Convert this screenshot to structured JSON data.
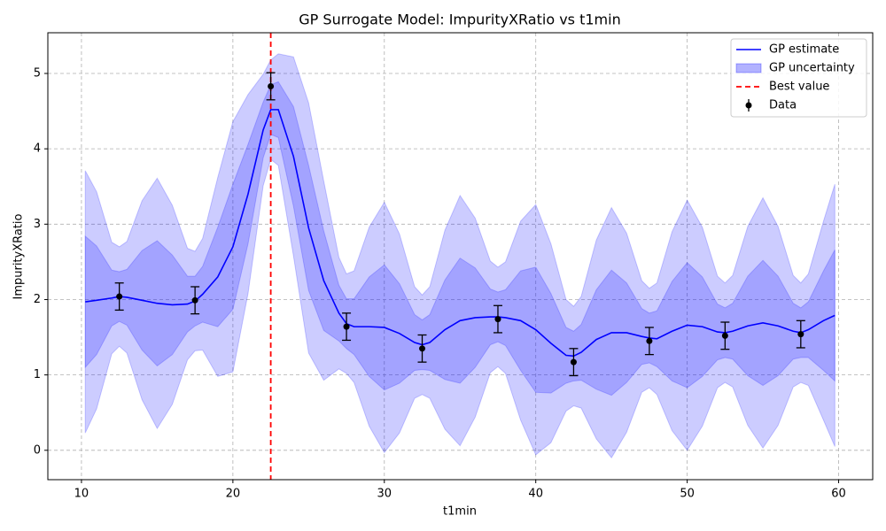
{
  "chart_data": {
    "type": "gp",
    "title": "GP Surrogate Model: ImpurityXRatio vs t1min",
    "x_label": "t1min",
    "y_label": "ImpurityXRatio",
    "xlim": [
      7.78,
      62.25
    ],
    "ylim": [
      -0.39,
      5.54
    ],
    "xticks": [
      10,
      20,
      30,
      40,
      50,
      60
    ],
    "yticks": [
      0,
      1,
      2,
      3,
      4,
      5
    ],
    "grid": true,
    "legend": "upper right",
    "x": [
      10.25,
      11,
      12,
      12.5,
      13,
      14,
      15,
      16,
      17,
      17.5,
      18,
      19,
      20,
      21,
      22,
      22.5,
      23,
      24,
      25,
      26,
      27,
      27.5,
      28,
      29,
      30,
      31,
      32,
      32.5,
      33,
      34,
      35,
      36,
      37,
      37.5,
      38,
      39,
      40,
      41,
      42,
      42.5,
      43,
      44,
      45,
      46,
      47,
      47.5,
      48,
      49,
      50,
      51,
      52,
      52.5,
      53,
      54,
      55,
      56,
      57,
      57.5,
      58,
      59,
      59.75
    ],
    "series": [
      {
        "name": "GP estimate",
        "color": "#0000ff",
        "values": [
          1.97,
          1.99,
          2.02,
          2.04,
          2.03,
          1.99,
          1.95,
          1.93,
          1.94,
          1.98,
          2.07,
          2.3,
          2.7,
          3.4,
          4.25,
          4.52,
          4.52,
          3.9,
          2.95,
          2.25,
          1.82,
          1.68,
          1.64,
          1.64,
          1.63,
          1.55,
          1.43,
          1.4,
          1.43,
          1.6,
          1.72,
          1.76,
          1.77,
          1.77,
          1.76,
          1.72,
          1.6,
          1.42,
          1.26,
          1.25,
          1.3,
          1.47,
          1.56,
          1.56,
          1.51,
          1.49,
          1.48,
          1.58,
          1.66,
          1.64,
          1.57,
          1.56,
          1.58,
          1.65,
          1.69,
          1.65,
          1.58,
          1.56,
          1.6,
          1.72,
          1.79
        ]
      }
    ],
    "band": {
      "name": "GP uncertainty",
      "color": "#0000ff",
      "opacity": 0.2,
      "outer_lower": [
        0.23,
        0.55,
        1.28,
        1.38,
        1.29,
        0.67,
        0.29,
        0.61,
        1.2,
        1.32,
        1.33,
        0.98,
        1.04,
        2.08,
        3.51,
        3.86,
        3.78,
        2.58,
        1.29,
        0.93,
        1.08,
        1.02,
        0.9,
        0.32,
        -0.03,
        0.23,
        0.69,
        0.74,
        0.69,
        0.28,
        0.06,
        0.44,
        1.03,
        1.11,
        1.02,
        0.4,
        -0.06,
        0.1,
        0.52,
        0.59,
        0.56,
        0.15,
        -0.1,
        0.24,
        0.77,
        0.83,
        0.74,
        0.26,
        0.0,
        0.32,
        0.83,
        0.9,
        0.84,
        0.33,
        0.03,
        0.33,
        0.84,
        0.9,
        0.86,
        0.4,
        0.05
      ],
      "outer_upper": [
        3.71,
        3.43,
        2.76,
        2.7,
        2.77,
        3.31,
        3.61,
        3.25,
        2.68,
        2.64,
        2.81,
        3.62,
        4.36,
        4.72,
        4.99,
        5.18,
        5.26,
        5.22,
        4.61,
        3.57,
        2.56,
        2.34,
        2.38,
        2.96,
        3.29,
        2.87,
        2.17,
        2.06,
        2.17,
        2.92,
        3.38,
        3.08,
        2.51,
        2.43,
        2.5,
        3.04,
        3.26,
        2.74,
        2.0,
        1.91,
        2.04,
        2.79,
        3.22,
        2.88,
        2.25,
        2.15,
        2.22,
        2.9,
        3.32,
        2.96,
        2.31,
        2.22,
        2.32,
        2.97,
        3.35,
        2.97,
        2.32,
        2.22,
        2.34,
        3.04,
        3.53
      ],
      "inner_lower": [
        1.1,
        1.27,
        1.65,
        1.71,
        1.66,
        1.33,
        1.12,
        1.27,
        1.57,
        1.65,
        1.7,
        1.64,
        1.87,
        2.74,
        3.88,
        4.19,
        4.15,
        3.24,
        2.12,
        1.59,
        1.45,
        1.35,
        1.27,
        0.98,
        0.8,
        0.89,
        1.06,
        1.07,
        1.06,
        0.94,
        0.89,
        1.1,
        1.4,
        1.44,
        1.39,
        1.06,
        0.77,
        0.76,
        0.89,
        0.92,
        0.93,
        0.81,
        0.73,
        0.9,
        1.14,
        1.16,
        1.11,
        0.92,
        0.83,
        0.98,
        1.2,
        1.23,
        1.21,
        0.99,
        0.86,
        0.99,
        1.21,
        1.23,
        1.23,
        1.06,
        0.92
      ],
      "inner_upper": [
        2.84,
        2.71,
        2.39,
        2.37,
        2.4,
        2.65,
        2.78,
        2.59,
        2.31,
        2.31,
        2.44,
        2.96,
        3.53,
        4.06,
        4.62,
        4.85,
        4.89,
        4.56,
        3.78,
        2.91,
        2.19,
        2.01,
        2.01,
        2.3,
        2.46,
        2.21,
        1.8,
        1.73,
        1.8,
        2.26,
        2.55,
        2.42,
        2.14,
        2.1,
        2.13,
        2.38,
        2.43,
        2.08,
        1.63,
        1.58,
        1.67,
        2.13,
        2.39,
        2.22,
        1.88,
        1.82,
        1.85,
        2.24,
        2.49,
        2.3,
        1.94,
        1.89,
        1.95,
        2.31,
        2.52,
        2.31,
        1.95,
        1.89,
        1.97,
        2.38,
        2.66
      ]
    },
    "best": {
      "name": "Best value",
      "x": 22.5,
      "color": "#ff0000"
    },
    "points": {
      "name": "Data",
      "color": "#000000",
      "x": [
        12.5,
        17.5,
        22.5,
        27.5,
        32.5,
        37.5,
        42.5,
        47.5,
        52.5,
        57.5
      ],
      "values": [
        2.04,
        1.99,
        4.83,
        1.64,
        1.35,
        1.74,
        1.17,
        1.45,
        1.52,
        1.54
      ],
      "errors": [
        0.18,
        0.18,
        0.18,
        0.18,
        0.18,
        0.18,
        0.18,
        0.18,
        0.18,
        0.18
      ]
    }
  }
}
